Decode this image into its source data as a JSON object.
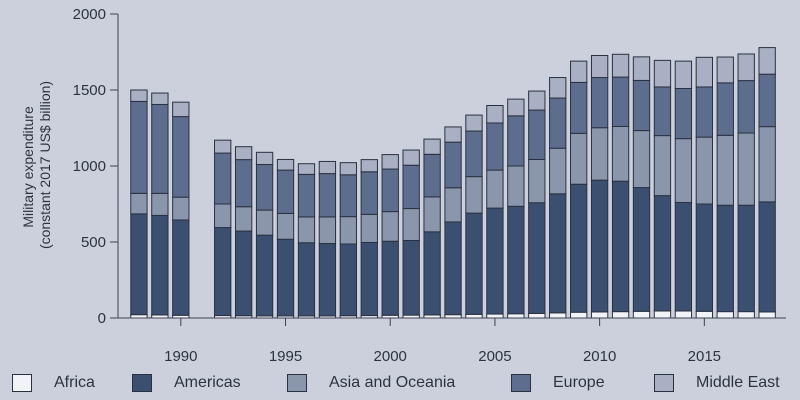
{
  "chart_data": {
    "type": "bar",
    "stacked": true,
    "title": "",
    "xlabel": "",
    "ylabel": [
      "Military expenditure",
      "(constant 2017 US$ billion)"
    ],
    "ylim": [
      0,
      2000
    ],
    "yticks": [
      0,
      500,
      1000,
      1500,
      2000
    ],
    "yticklabels": [
      "0",
      "500",
      "1000",
      "1500",
      "2000"
    ],
    "xlim": [
      1987,
      2018.9
    ],
    "xticks": [
      1990,
      1995,
      2000,
      2005,
      2010,
      2015
    ],
    "xticklabels": [
      "1990",
      "1995",
      "2000",
      "2005",
      "2010",
      "2015"
    ],
    "grid": false,
    "legend_position": "bottom",
    "x": [
      1988,
      1989,
      1990,
      1992,
      1993,
      1994,
      1995,
      1996,
      1997,
      1998,
      1999,
      2000,
      2001,
      2002,
      2003,
      2004,
      2005,
      2006,
      2007,
      2008,
      2009,
      2010,
      2011,
      2012,
      2013,
      2014,
      2015,
      2016,
      2017,
      2018
    ],
    "series": [
      {
        "name": "Africa",
        "color": "#f2f3f7",
        "values": [
          22,
          20,
          18,
          16,
          15,
          14,
          14,
          14,
          14,
          15,
          16,
          18,
          19,
          20,
          22,
          24,
          26,
          28,
          30,
          34,
          38,
          40,
          42,
          44,
          46,
          46,
          44,
          42,
          42,
          40
        ]
      },
      {
        "name": "Americas",
        "color": "#3b5070",
        "values": [
          663,
          655,
          627,
          579,
          557,
          531,
          504,
          481,
          476,
          472,
          481,
          487,
          491,
          547,
          610,
          666,
          697,
          707,
          728,
          783,
          842,
          867,
          858,
          814,
          759,
          714,
          706,
          700,
          700,
          724
        ]
      },
      {
        "name": "Asia and Oceania",
        "color": "#8a96ac",
        "values": [
          135,
          145,
          150,
          155,
          160,
          165,
          170,
          170,
          175,
          180,
          185,
          195,
          210,
          230,
          225,
          240,
          250,
          265,
          285,
          300,
          335,
          345,
          360,
          375,
          395,
          420,
          440,
          460,
          475,
          495
        ]
      },
      {
        "name": "Europe",
        "color": "#5c6d8e",
        "values": [
          605,
          585,
          530,
          335,
          310,
          300,
          285,
          280,
          285,
          275,
          280,
          280,
          285,
          280,
          300,
          300,
          310,
          330,
          325,
          330,
          335,
          330,
          325,
          330,
          320,
          330,
          330,
          345,
          345,
          345
        ]
      },
      {
        "name": "Middle East",
        "color": "#a9b0c3",
        "values": [
          75,
          75,
          95,
          85,
          85,
          80,
          70,
          70,
          80,
          80,
          80,
          95,
          100,
          100,
          100,
          105,
          115,
          110,
          125,
          135,
          140,
          145,
          150,
          155,
          175,
          180,
          195,
          170,
          175,
          175
        ]
      }
    ]
  }
}
